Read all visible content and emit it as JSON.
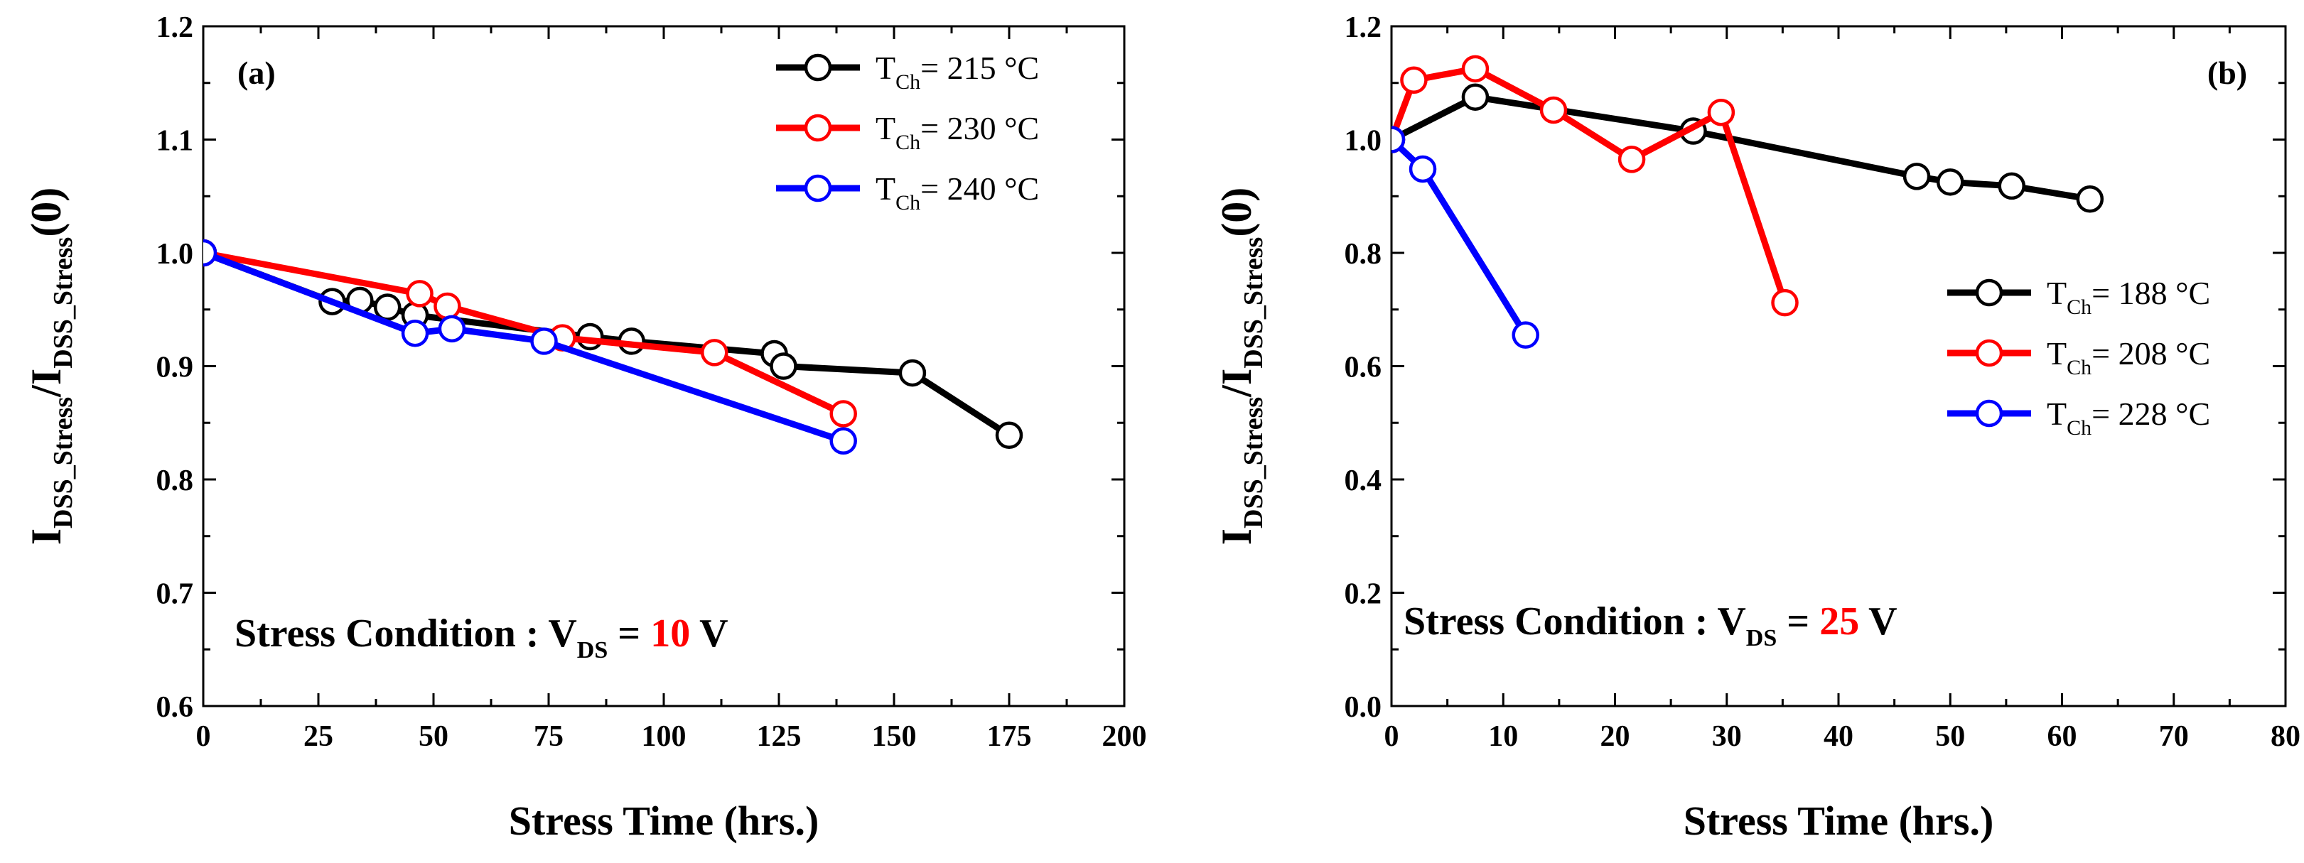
{
  "chart_data": [
    {
      "type": "line",
      "panel_label": "(a)",
      "xlabel": "Stress Time (hrs.)",
      "ylabel": {
        "main": "I",
        "sub1": "DSS_Stress",
        "slash": "/I",
        "sub2": "DSS_Stress",
        "tail": "(0)"
      },
      "xlim": [
        0,
        200
      ],
      "ylim": [
        0.6,
        1.2
      ],
      "xticks": [
        0,
        25,
        50,
        75,
        100,
        125,
        150,
        175,
        200
      ],
      "yticks": [
        0.6,
        0.7,
        0.8,
        0.9,
        1.0,
        1.1,
        1.2
      ],
      "xtick_labels": [
        "0",
        "25",
        "50",
        "75",
        "100",
        "125",
        "150",
        "175",
        "200"
      ],
      "ytick_labels": [
        "0.6",
        "0.7",
        "0.8",
        "0.9",
        "1.0",
        "1.1",
        "1.2"
      ],
      "legend_position": "top-right",
      "annotation": {
        "prefix": "Stress Condition : V",
        "sub": "DS",
        "eq": " = ",
        "value": "10",
        "unit": " V"
      },
      "series": [
        {
          "name": "215 °C",
          "label": {
            "main": "T",
            "sub": "Ch",
            "text": "=  215 °C"
          },
          "color": "#000000",
          "x": [
            0,
            28,
            34,
            40,
            46,
            84,
            93,
            124,
            126,
            154,
            175
          ],
          "y": [
            1.0,
            0.957,
            0.958,
            0.952,
            0.945,
            0.926,
            0.922,
            0.911,
            0.9,
            0.894,
            0.839
          ]
        },
        {
          "name": "230 °C",
          "label": {
            "main": "T",
            "sub": "Ch",
            "text": "= 230 °C"
          },
          "color": "#ff0000",
          "x": [
            0,
            47,
            53,
            78,
            111,
            139
          ],
          "y": [
            1.0,
            0.964,
            0.953,
            0.925,
            0.912,
            0.858
          ]
        },
        {
          "name": "240 °C",
          "label": {
            "main": "T",
            "sub": "Ch",
            "text": "= 240 °C"
          },
          "color": "#0000ff",
          "x": [
            0,
            46,
            54,
            74,
            139
          ],
          "y": [
            1.0,
            0.929,
            0.933,
            0.922,
            0.834
          ]
        }
      ]
    },
    {
      "type": "line",
      "panel_label": "(b)",
      "xlabel": "Stress Time (hrs.)",
      "ylabel": {
        "main": "I",
        "sub1": "DSS_Stress",
        "slash": "/I",
        "sub2": "DSS_Stress",
        "tail": "(0)"
      },
      "xlim": [
        0,
        80
      ],
      "ylim": [
        0.0,
        1.2
      ],
      "xticks": [
        0,
        10,
        20,
        30,
        40,
        50,
        60,
        70,
        80
      ],
      "yticks": [
        0.0,
        0.2,
        0.4,
        0.6,
        0.8,
        1.0,
        1.2
      ],
      "xtick_labels": [
        "0",
        "10",
        "20",
        "30",
        "40",
        "50",
        "60",
        "70",
        "80"
      ],
      "ytick_labels": [
        "0.0",
        "0.2",
        "0.4",
        "0.6",
        "0.8",
        "1.0",
        "1.2"
      ],
      "legend_position": "center-right",
      "annotation": {
        "prefix": "Stress Condition : V",
        "sub": "DS",
        "eq": " = ",
        "value": "25",
        "unit": " V"
      },
      "series": [
        {
          "name": "188 °C",
          "label": {
            "main": "T",
            "sub": "Ch",
            "text": "=  188 °C"
          },
          "color": "#000000",
          "x": [
            0,
            7.5,
            27,
            47,
            50,
            55.5,
            62.5
          ],
          "y": [
            1.0,
            1.075,
            1.015,
            0.935,
            0.925,
            0.918,
            0.895
          ]
        },
        {
          "name": "208 °C",
          "label": {
            "main": "T",
            "sub": "Ch",
            "text": "= 208 °C"
          },
          "color": "#ff0000",
          "x": [
            0,
            2,
            7.5,
            14.5,
            21.5,
            29.5,
            35.2
          ],
          "y": [
            1.0,
            1.105,
            1.125,
            1.052,
            0.965,
            1.048,
            0.712
          ]
        },
        {
          "name": "228 °C",
          "label": {
            "main": "T",
            "sub": "Ch",
            "text": "= 228 °C"
          },
          "color": "#0000ff",
          "x": [
            0,
            2.8,
            12
          ],
          "y": [
            1.0,
            0.948,
            0.655
          ]
        }
      ]
    }
  ]
}
